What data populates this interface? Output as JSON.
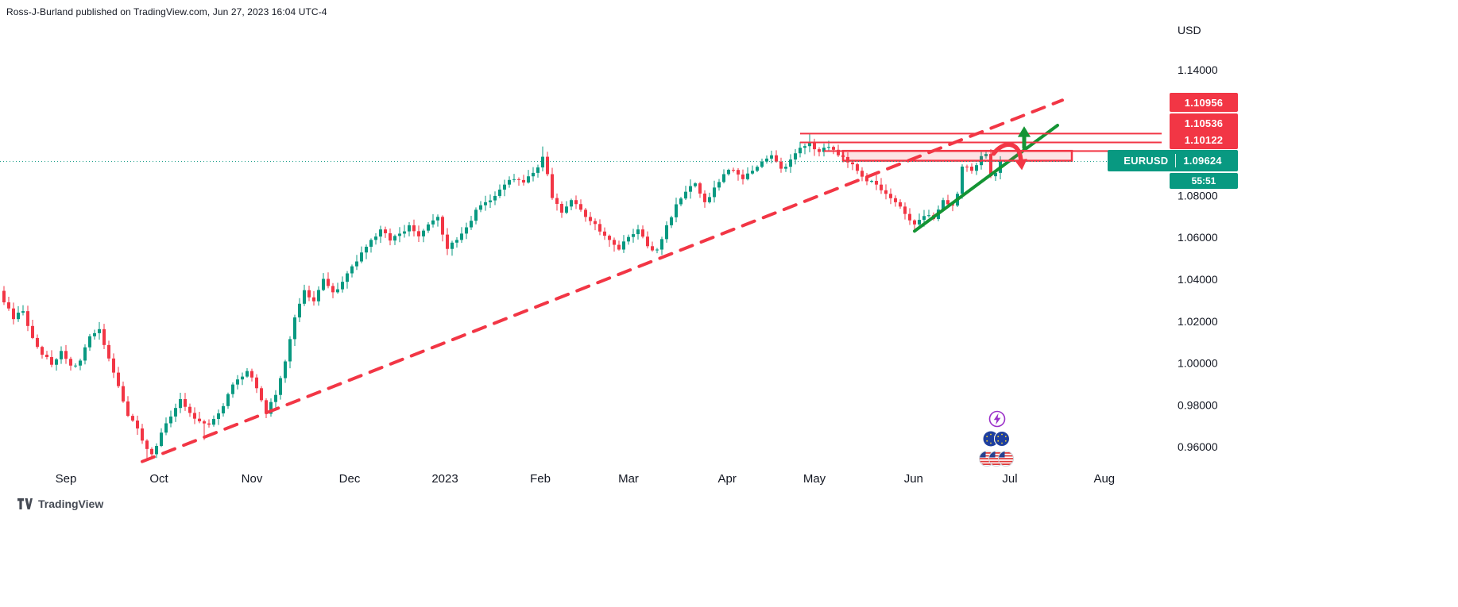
{
  "header": {
    "attribution": "Ross-J-Burland published on TradingView.com, Jun 27, 2023 16:04 UTC-4"
  },
  "price_axis": {
    "currency_label": "USD",
    "level_badges": [
      {
        "label": "1.10956",
        "price": 1.10956
      },
      {
        "label": "1.10536",
        "price": 1.10536
      },
      {
        "label": "1.10122",
        "price": 1.10122
      }
    ],
    "symbol_badge": {
      "symbol": "EURUSD",
      "price": "1.09624",
      "countdown": "55:51",
      "color": "#089981"
    }
  },
  "footer": {
    "logo_text": "TradingView"
  },
  "reactions": [
    {
      "name": "lightning"
    },
    {
      "name": "eu-flags",
      "count": 2
    },
    {
      "name": "us-flags",
      "count": 3
    }
  ],
  "chart_data": {
    "type": "candlestick",
    "symbol": "EURUSD",
    "quote_currency": "USD",
    "ylim": [
      0.945,
      1.155
    ],
    "grid": false,
    "up_color": "#089981",
    "down_color": "#f23645",
    "current_price": 1.09624,
    "candle_count": 210,
    "first_open": 1.0345,
    "price_ticks": [
      {
        "label": "1.14000",
        "price": 1.14
      },
      {
        "label": "1.08000",
        "price": 1.08
      },
      {
        "label": "1.06000",
        "price": 1.06
      },
      {
        "label": "1.04000",
        "price": 1.04
      },
      {
        "label": "1.02000",
        "price": 1.02
      },
      {
        "label": "1.00000",
        "price": 1.0
      },
      {
        "label": "0.98000",
        "price": 0.98
      },
      {
        "label": "0.96000",
        "price": 0.96
      }
    ],
    "months": [
      {
        "label": "Sep",
        "index": 13
      },
      {
        "label": "Oct",
        "index": 32.5
      },
      {
        "label": "Nov",
        "index": 52
      },
      {
        "label": "Dec",
        "index": 72.5
      },
      {
        "label": "2023",
        "index": 92.5
      },
      {
        "label": "Feb",
        "index": 112.5
      },
      {
        "label": "Mar",
        "index": 131
      },
      {
        "label": "Apr",
        "index": 151.7
      },
      {
        "label": "May",
        "index": 170
      },
      {
        "label": "Jun",
        "index": 190.8
      },
      {
        "label": "Jul",
        "index": 211
      },
      {
        "label": "Aug",
        "index": 230.8
      }
    ],
    "close_keypoints": [
      [
        0,
        1.029
      ],
      [
        2,
        1.021
      ],
      [
        4,
        1.0248
      ],
      [
        6,
        1.012
      ],
      [
        8,
        1.004
      ],
      [
        10,
        0.9992
      ],
      [
        12,
        1.0058
      ],
      [
        14,
        0.9988
      ],
      [
        16,
        1.0012
      ],
      [
        18,
        1.0128
      ],
      [
        20,
        1.0162
      ],
      [
        22,
        1.0022
      ],
      [
        24,
        0.989
      ],
      [
        26,
        0.9748
      ],
      [
        28,
        0.9688
      ],
      [
        30,
        0.959
      ],
      [
        31,
        0.9565
      ],
      [
        33,
        0.9668
      ],
      [
        35,
        0.9745
      ],
      [
        37,
        0.9828
      ],
      [
        39,
        0.9762
      ],
      [
        41,
        0.9722
      ],
      [
        43,
        0.9706
      ],
      [
        45,
        0.976
      ],
      [
        47,
        0.9852
      ],
      [
        49,
        0.9922
      ],
      [
        51,
        0.9962
      ],
      [
        53,
        0.988
      ],
      [
        55,
        0.9758
      ],
      [
        57,
        0.9848
      ],
      [
        59,
        1.0008
      ],
      [
        61,
        1.0218
      ],
      [
        63,
        1.0348
      ],
      [
        65,
        1.0295
      ],
      [
        67,
        1.0402
      ],
      [
        69,
        1.0338
      ],
      [
        71,
        1.0388
      ],
      [
        73,
        1.0462
      ],
      [
        75,
        1.0528
      ],
      [
        77,
        1.0588
      ],
      [
        79,
        1.0638
      ],
      [
        81,
        1.0585
      ],
      [
        83,
        1.0618
      ],
      [
        85,
        1.0658
      ],
      [
        87,
        1.0605
      ],
      [
        89,
        1.0662
      ],
      [
        91,
        1.0698
      ],
      [
        93,
        1.0545
      ],
      [
        95,
        1.0588
      ],
      [
        97,
        1.0648
      ],
      [
        99,
        1.0732
      ],
      [
        101,
        1.0768
      ],
      [
        103,
        1.0798
      ],
      [
        105,
        1.0852
      ],
      [
        107,
        1.0878
      ],
      [
        109,
        1.0862
      ],
      [
        111,
        1.0908
      ],
      [
        113,
        1.0985
      ],
      [
        114,
        1.0902
      ],
      [
        115,
        1.0788
      ],
      [
        117,
        1.0718
      ],
      [
        119,
        1.0778
      ],
      [
        121,
        1.0732
      ],
      [
        123,
        1.0678
      ],
      [
        125,
        1.0628
      ],
      [
        127,
        1.0588
      ],
      [
        129,
        1.0542
      ],
      [
        131,
        1.0602
      ],
      [
        133,
        1.0638
      ],
      [
        135,
        1.0558
      ],
      [
        137,
        1.0542
      ],
      [
        139,
        1.0658
      ],
      [
        141,
        1.0758
      ],
      [
        143,
        1.0818
      ],
      [
        145,
        1.0858
      ],
      [
        147,
        1.0768
      ],
      [
        149,
        1.0838
      ],
      [
        151,
        1.0902
      ],
      [
        153,
        1.0922
      ],
      [
        155,
        1.0878
      ],
      [
        157,
        1.0918
      ],
      [
        159,
        1.0962
      ],
      [
        161,
        1.0992
      ],
      [
        163,
        1.0928
      ],
      [
        165,
        1.0972
      ],
      [
        167,
        1.1028
      ],
      [
        169,
        1.1052
      ],
      [
        171,
        1.1008
      ],
      [
        173,
        1.1032
      ],
      [
        175,
        1.0992
      ],
      [
        177,
        1.0958
      ],
      [
        179,
        1.0918
      ],
      [
        181,
        1.0868
      ],
      [
        183,
        1.0852
      ],
      [
        185,
        1.0808
      ],
      [
        187,
        1.0768
      ],
      [
        189,
        1.0712
      ],
      [
        191,
        1.0662
      ],
      [
        193,
        1.0702
      ],
      [
        195,
        1.0688
      ],
      [
        197,
        1.0778
      ],
      [
        199,
        1.0752
      ],
      [
        200,
        1.0808
      ],
      [
        201,
        1.0938
      ],
      [
        203,
        1.0918
      ],
      [
        205,
        1.0988
      ],
      [
        206,
        1.0998
      ],
      [
        207,
        1.0892
      ],
      [
        208,
        1.0908
      ],
      [
        209,
        1.09624
      ]
    ],
    "wick_overrides": [
      {
        "index": 0,
        "high": 1.0368
      },
      {
        "index": 20,
        "high": 1.0196
      },
      {
        "index": 30,
        "low": 0.9535
      },
      {
        "index": 42,
        "low": 0.9633
      },
      {
        "index": 113,
        "high": 1.1034
      },
      {
        "index": 169,
        "high": 1.1094
      },
      {
        "index": 173,
        "high": 1.1058
      },
      {
        "index": 191,
        "low": 1.0635
      },
      {
        "index": 206,
        "high": 1.1012
      }
    ],
    "resistance_levels": [
      {
        "label": "1.10956",
        "price": 1.10956,
        "start_index": 167,
        "color": "#f23645"
      },
      {
        "label": "1.10536",
        "price": 1.10536,
        "start_index": 167,
        "color": "#f23645"
      },
      {
        "label": "1.10122",
        "price": 1.10122,
        "start_index": 172,
        "color": "#f23645"
      }
    ],
    "supply_zone": {
      "start_index": 176,
      "end_index": 224,
      "top_price": 1.1013,
      "bottom_price": 1.0966,
      "border_color": "#f23645",
      "fill_opacity": 0.14
    },
    "trendlines": [
      {
        "name": "long-term-rising-trendline",
        "style": "dashed",
        "color": "#f23645",
        "width": 4,
        "points": [
          [
            29,
            0.953
          ],
          [
            222,
            1.1255
          ]
        ]
      },
      {
        "name": "june-rising-trendline",
        "style": "solid",
        "color": "#149434",
        "width": 4,
        "points": [
          [
            191,
            1.063
          ],
          [
            221,
            1.1135
          ]
        ]
      }
    ],
    "arrows": [
      {
        "name": "green-up-arrow",
        "direction": "up",
        "color": "#149434",
        "tail": [
          214,
          1.1028
        ],
        "tip": [
          214,
          1.1125
        ]
      },
      {
        "name": "red-curved-down-arrow",
        "direction": "curved-down",
        "color": "#f23645",
        "path": [
          [
            207.6,
            1.1
          ],
          [
            209.6,
            1.106
          ],
          [
            212.9,
            1.1063
          ],
          [
            213.3,
            1.0972
          ]
        ]
      }
    ],
    "current_price_line": {
      "price": 1.09624,
      "color": "#089981",
      "style": "dotted"
    }
  }
}
